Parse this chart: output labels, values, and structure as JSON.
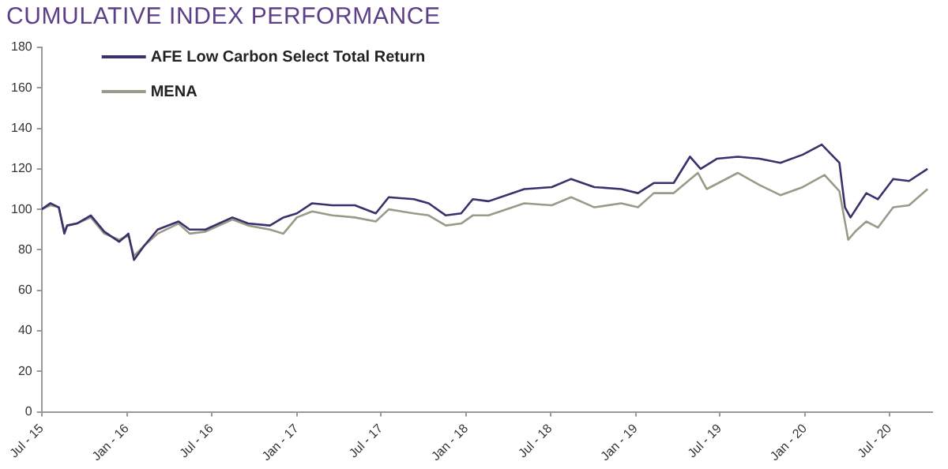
{
  "chart_data": {
    "type": "line",
    "title": "CUMULATIVE INDEX PERFORMANCE",
    "xlim": [
      "2015-07-01",
      "2020-10-01"
    ],
    "xticks": [
      {
        "value": "2015-07-01",
        "label": "Jul - 15"
      },
      {
        "value": "2016-01-01",
        "label": "Jan - 16"
      },
      {
        "value": "2016-07-01",
        "label": "Jul - 16"
      },
      {
        "value": "2017-01-01",
        "label": "Jan - 17"
      },
      {
        "value": "2017-07-01",
        "label": "Jul - 17"
      },
      {
        "value": "2018-01-01",
        "label": "Jan - 18"
      },
      {
        "value": "2018-07-01",
        "label": "Jul - 18"
      },
      {
        "value": "2019-01-01",
        "label": "Jan - 19"
      },
      {
        "value": "2019-07-01",
        "label": "Jul - 19"
      },
      {
        "value": "2020-01-01",
        "label": "Jan - 20"
      },
      {
        "value": "2020-07-01",
        "label": "Jul - 20"
      }
    ],
    "ylim": [
      0,
      180
    ],
    "yticks": [
      0,
      20,
      40,
      60,
      80,
      100,
      120,
      140,
      160,
      180
    ],
    "grid": false,
    "legend": "top left",
    "marker": "none",
    "line_style": "solid",
    "series": [
      {
        "name": "AFE Low Carbon Select Total Return",
        "color": "#3d2f6b",
        "x": [
          "2015-07-01",
          "2015-07-20",
          "2015-08-07",
          "2015-08-19",
          "2015-08-25",
          "2015-09-15",
          "2015-10-15",
          "2015-11-13",
          "2015-12-15",
          "2016-01-04",
          "2016-01-16",
          "2016-02-07",
          "2016-03-07",
          "2016-04-21",
          "2016-05-15",
          "2016-06-18",
          "2016-08-15",
          "2016-09-18",
          "2016-11-04",
          "2016-12-03",
          "2017-01-01",
          "2017-02-03",
          "2017-03-18",
          "2017-05-06",
          "2017-06-20",
          "2017-07-18",
          "2017-09-10",
          "2017-10-12",
          "2017-11-18",
          "2017-12-21",
          "2018-01-15",
          "2018-02-18",
          "2018-05-06",
          "2018-07-04",
          "2018-08-15",
          "2018-10-04",
          "2018-12-01",
          "2019-01-06",
          "2019-02-09",
          "2019-03-24",
          "2019-04-28",
          "2019-05-21",
          "2019-06-25",
          "2019-08-09",
          "2019-09-25",
          "2019-11-09",
          "2019-12-27",
          "2020-02-06",
          "2020-03-15",
          "2020-03-27",
          "2020-04-08",
          "2020-05-12",
          "2020-06-06",
          "2020-07-09",
          "2020-08-12",
          "2020-09-21"
        ],
        "values": [
          100,
          103,
          101,
          88,
          92,
          93,
          97,
          89,
          84,
          88,
          75,
          82,
          90,
          94,
          90,
          90,
          96,
          93,
          92,
          96,
          98,
          103,
          102,
          102,
          98,
          106,
          105,
          103,
          97,
          98,
          105,
          104,
          110,
          111,
          115,
          111,
          110,
          108,
          113,
          113,
          126,
          120,
          125,
          126,
          125,
          123,
          127,
          132,
          123,
          101,
          96,
          108,
          105,
          115,
          114,
          120
        ]
      },
      {
        "name": "MENA",
        "color": "#9b9a88",
        "x": [
          "2015-07-01",
          "2015-07-20",
          "2015-08-07",
          "2015-08-19",
          "2015-08-25",
          "2015-09-15",
          "2015-10-15",
          "2015-11-13",
          "2015-12-15",
          "2016-01-04",
          "2016-01-16",
          "2016-02-07",
          "2016-03-07",
          "2016-04-21",
          "2016-05-15",
          "2016-06-18",
          "2016-08-15",
          "2016-09-18",
          "2016-11-04",
          "2016-12-03",
          "2017-01-01",
          "2017-02-03",
          "2017-03-18",
          "2017-05-06",
          "2017-06-20",
          "2017-07-18",
          "2017-09-10",
          "2017-10-12",
          "2017-11-18",
          "2017-12-21",
          "2018-01-15",
          "2018-02-18",
          "2018-05-06",
          "2018-07-04",
          "2018-08-15",
          "2018-10-04",
          "2018-12-01",
          "2019-01-06",
          "2019-02-09",
          "2019-03-24",
          "2019-05-15",
          "2019-06-03",
          "2019-08-09",
          "2019-09-25",
          "2019-11-09",
          "2019-12-27",
          "2020-02-12",
          "2020-03-15",
          "2020-04-03",
          "2020-04-18",
          "2020-05-12",
          "2020-06-06",
          "2020-07-09",
          "2020-08-12",
          "2020-09-21"
        ],
        "values": [
          100,
          102,
          101,
          89,
          92,
          93,
          96,
          88,
          85,
          87,
          77,
          82,
          88,
          93,
          88,
          89,
          95,
          92,
          90,
          88,
          96,
          99,
          97,
          96,
          94,
          100,
          98,
          97,
          92,
          93,
          97,
          97,
          103,
          102,
          106,
          101,
          103,
          101,
          108,
          108,
          118,
          110,
          118,
          112,
          107,
          111,
          117,
          109,
          85,
          89,
          94,
          91,
          101,
          102,
          110
        ]
      }
    ]
  }
}
